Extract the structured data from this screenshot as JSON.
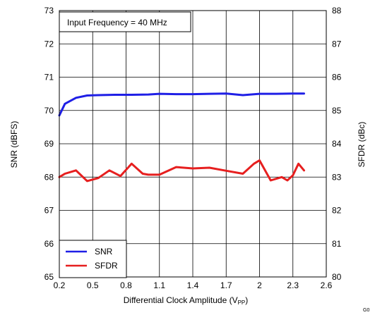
{
  "chart_data": {
    "type": "line",
    "annotation": "Input Frequency = 40 MHz",
    "xlabel_main": "Differential Clock Amplitude (V",
    "xlabel_sub": "PP",
    "xlabel_close": ")",
    "ylabel_left": "SNR (dBFS)",
    "ylabel_right": "SFDR (dBc)",
    "corner_tag": "G0",
    "xlim": [
      0.2,
      2.6
    ],
    "ylim_left": [
      65,
      73
    ],
    "ylim_right": [
      80,
      88
    ],
    "x_ticks": [
      "0.2",
      "0.5",
      "0.8",
      "1.1",
      "1.4",
      "1.7",
      "2",
      "2.3",
      "2.6"
    ],
    "y_ticks_left": [
      "65",
      "66",
      "67",
      "68",
      "69",
      "70",
      "71",
      "72",
      "73"
    ],
    "y_ticks_right": [
      "80",
      "81",
      "82",
      "83",
      "84",
      "85",
      "86",
      "87",
      "88"
    ],
    "grid": true,
    "legend_position": "bottom-left",
    "series": [
      {
        "name": "SNR",
        "axis": "left",
        "color": "#1f1fe6",
        "x": [
          0.2,
          0.25,
          0.35,
          0.45,
          0.55,
          0.7,
          0.85,
          1.0,
          1.1,
          1.25,
          1.4,
          1.55,
          1.7,
          1.85,
          2.0,
          2.15,
          2.3,
          2.4
        ],
        "y": [
          69.85,
          70.2,
          70.38,
          70.45,
          70.46,
          70.47,
          70.47,
          70.48,
          70.5,
          70.49,
          70.49,
          70.5,
          70.51,
          70.46,
          70.5,
          70.5,
          70.51,
          70.51
        ]
      },
      {
        "name": "SFDR",
        "axis": "right",
        "color": "#e61f1f",
        "x": [
          0.2,
          0.25,
          0.35,
          0.45,
          0.55,
          0.65,
          0.75,
          0.85,
          0.95,
          1.0,
          1.1,
          1.25,
          1.4,
          1.55,
          1.7,
          1.85,
          1.95,
          2.0,
          2.1,
          2.2,
          2.25,
          2.3,
          2.35,
          2.4
        ],
        "y": [
          83.0,
          83.1,
          83.2,
          82.88,
          82.97,
          83.2,
          83.03,
          83.4,
          83.1,
          83.07,
          83.07,
          83.3,
          83.26,
          83.28,
          83.19,
          83.1,
          83.4,
          83.5,
          82.9,
          83.0,
          82.9,
          83.05,
          83.4,
          83.2
        ]
      }
    ]
  }
}
